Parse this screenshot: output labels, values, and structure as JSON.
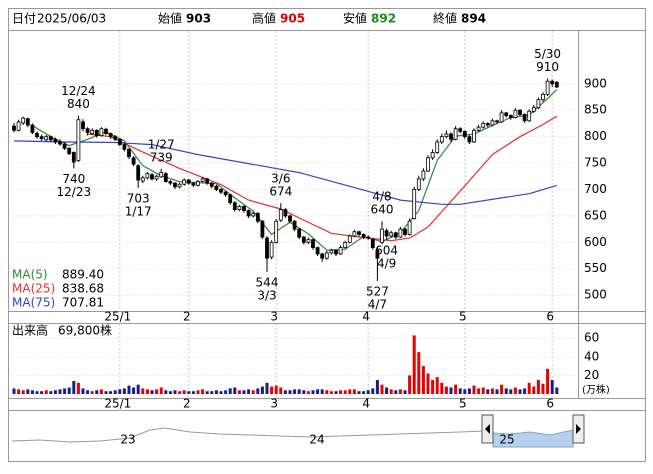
{
  "header": {
    "date_label": "日付",
    "date": "2025/06/03",
    "open_label": "始値",
    "high_label": "高値",
    "low_label": "安値",
    "close_label": "終値"
  },
  "chart_data": {
    "type": "candlestick",
    "candles": [
      [
        820,
        826,
        808,
        812
      ],
      [
        812,
        832,
        810,
        828
      ],
      [
        826,
        838,
        822,
        835
      ],
      [
        834,
        836,
        818,
        822
      ],
      [
        822,
        825,
        805,
        808
      ],
      [
        806,
        810,
        796,
        800
      ],
      [
        800,
        804,
        792,
        796
      ],
      [
        794,
        803,
        791,
        800
      ],
      [
        800,
        802,
        790,
        794
      ],
      [
        795,
        798,
        786,
        790
      ],
      [
        790,
        795,
        783,
        786
      ],
      [
        786,
        789,
        775,
        778
      ],
      [
        778,
        780,
        765,
        768
      ],
      [
        770,
        772,
        740,
        752
      ],
      [
        755,
        840,
        752,
        832
      ],
      [
        828,
        833,
        810,
        815
      ],
      [
        815,
        818,
        802,
        808
      ],
      [
        806,
        816,
        804,
        812
      ],
      [
        812,
        814,
        798,
        802
      ],
      [
        802,
        818,
        800,
        815
      ],
      [
        814,
        817,
        803,
        806
      ],
      [
        806,
        808,
        796,
        800
      ],
      [
        800,
        803,
        792,
        795
      ],
      [
        795,
        797,
        782,
        785
      ],
      [
        785,
        788,
        772,
        776
      ],
      [
        776,
        778,
        758,
        762
      ],
      [
        760,
        763,
        744,
        748
      ],
      [
        745,
        748,
        703,
        718
      ],
      [
        716,
        726,
        712,
        722
      ],
      [
        722,
        733,
        719,
        730
      ],
      [
        728,
        731,
        717,
        720
      ],
      [
        720,
        728,
        716,
        725
      ],
      [
        724,
        739,
        722,
        732
      ],
      [
        730,
        733,
        713,
        715
      ],
      [
        715,
        718,
        708,
        712
      ],
      [
        712,
        714,
        701,
        705
      ],
      [
        705,
        713,
        702,
        710
      ],
      [
        710,
        721,
        707,
        718
      ],
      [
        718,
        720,
        709,
        712
      ],
      [
        712,
        714,
        705,
        708
      ],
      [
        708,
        718,
        706,
        715
      ],
      [
        715,
        724,
        713,
        720
      ],
      [
        720,
        722,
        709,
        712
      ],
      [
        712,
        714,
        702,
        706
      ],
      [
        706,
        709,
        697,
        700
      ],
      [
        700,
        702,
        691,
        695
      ],
      [
        695,
        697,
        686,
        690
      ],
      [
        690,
        692,
        671,
        675
      ],
      [
        675,
        678,
        658,
        662
      ],
      [
        662,
        671,
        659,
        668
      ],
      [
        668,
        670,
        656,
        660
      ],
      [
        660,
        662,
        646,
        650
      ],
      [
        650,
        658,
        647,
        655
      ],
      [
        655,
        657,
        636,
        640
      ],
      [
        640,
        642,
        606,
        610
      ],
      [
        608,
        612,
        544,
        570
      ],
      [
        572,
        604,
        568,
        600
      ],
      [
        600,
        644,
        598,
        640
      ],
      [
        642,
        674,
        638,
        662
      ],
      [
        662,
        665,
        646,
        650
      ],
      [
        650,
        652,
        636,
        640
      ],
      [
        640,
        642,
        621,
        625
      ],
      [
        625,
        627,
        606,
        610
      ],
      [
        610,
        612,
        596,
        600
      ],
      [
        600,
        609,
        597,
        605
      ],
      [
        605,
        607,
        586,
        590
      ],
      [
        590,
        592,
        574,
        578
      ],
      [
        578,
        580,
        563,
        570
      ],
      [
        570,
        584,
        567,
        580
      ],
      [
        580,
        588,
        577,
        585
      ],
      [
        585,
        587,
        574,
        578
      ],
      [
        578,
        594,
        576,
        590
      ],
      [
        590,
        603,
        588,
        600
      ],
      [
        600,
        615,
        598,
        612
      ],
      [
        612,
        624,
        610,
        620
      ],
      [
        620,
        622,
        611,
        615
      ],
      [
        615,
        617,
        606,
        610
      ],
      [
        610,
        613,
        605,
        608
      ],
      [
        606,
        608,
        586,
        590
      ],
      [
        585,
        592,
        527,
        570
      ],
      [
        600,
        640,
        596,
        625
      ],
      [
        622,
        626,
        604,
        612
      ],
      [
        612,
        622,
        609,
        618
      ],
      [
        618,
        620,
        606,
        610
      ],
      [
        610,
        629,
        608,
        625
      ],
      [
        625,
        627,
        611,
        615
      ],
      [
        615,
        645,
        613,
        640
      ],
      [
        645,
        705,
        643,
        700
      ],
      [
        700,
        726,
        697,
        720
      ],
      [
        720,
        740,
        716,
        735
      ],
      [
        735,
        765,
        733,
        760
      ],
      [
        760,
        776,
        756,
        770
      ],
      [
        770,
        795,
        767,
        790
      ],
      [
        790,
        806,
        786,
        800
      ],
      [
        800,
        812,
        797,
        805
      ],
      [
        805,
        808,
        790,
        795
      ],
      [
        795,
        820,
        793,
        815
      ],
      [
        815,
        818,
        806,
        810
      ],
      [
        810,
        812,
        796,
        800
      ],
      [
        800,
        803,
        786,
        790
      ],
      [
        790,
        816,
        788,
        812
      ],
      [
        812,
        822,
        809,
        818
      ],
      [
        818,
        829,
        815,
        825
      ],
      [
        825,
        827,
        818,
        822
      ],
      [
        822,
        834,
        820,
        830
      ],
      [
        830,
        832,
        824,
        828
      ],
      [
        828,
        850,
        826,
        845
      ],
      [
        845,
        847,
        836,
        840
      ],
      [
        840,
        842,
        832,
        836
      ],
      [
        836,
        854,
        834,
        850
      ],
      [
        850,
        852,
        839,
        842
      ],
      [
        842,
        844,
        826,
        830
      ],
      [
        830,
        852,
        828,
        848
      ],
      [
        848,
        860,
        845,
        855
      ],
      [
        855,
        874,
        852,
        870
      ],
      [
        870,
        884,
        866,
        880
      ],
      [
        880,
        910,
        877,
        905
      ],
      [
        905,
        908,
        894,
        900
      ],
      [
        903,
        905,
        892,
        894
      ]
    ],
    "up_color": "#ffffff",
    "down_color": "#000000",
    "ylim": [
      470,
      1000
    ],
    "yticks": [
      500,
      550,
      600,
      650,
      700,
      750,
      800,
      850,
      900
    ],
    "xticks": [
      {
        "value": 23,
        "label": "25/1"
      },
      {
        "value": 38,
        "label": "2"
      },
      {
        "value": 57,
        "label": "3"
      },
      {
        "value": 77,
        "label": "4"
      },
      {
        "value": 98,
        "label": "5"
      },
      {
        "value": 117,
        "label": "6"
      }
    ],
    "annotations": [
      {
        "kind": "high",
        "date": "12/24",
        "value": 840
      },
      {
        "kind": "low",
        "date": "12/23",
        "value": 740
      },
      {
        "kind": "low",
        "date": "1/17",
        "value": 703
      },
      {
        "kind": "high",
        "date": "1/27",
        "value": 739
      },
      {
        "kind": "high",
        "date": "3/6",
        "value": 674
      },
      {
        "kind": "low",
        "date": "3/3",
        "value": 544
      },
      {
        "kind": "high",
        "date": "4/8",
        "value": 640
      },
      {
        "kind": "low",
        "date": "4/9",
        "value": 604
      },
      {
        "kind": "low",
        "date": "4/7",
        "value": 527
      },
      {
        "kind": "high",
        "date": "5/30",
        "value": 910
      }
    ],
    "series": [
      {
        "name": "MA(5)",
        "color": "#2e8b2e",
        "last_label": "889.40",
        "x": [
          4,
          8,
          12,
          16,
          20,
          24,
          28,
          32,
          36,
          40,
          44,
          48,
          52,
          56,
          60,
          64,
          68,
          72,
          76,
          80,
          84,
          88,
          92,
          96,
          100,
          104,
          108,
          112,
          116,
          118
        ],
        "values": [
          821,
          800,
          783,
          795,
          809,
          792,
          745,
          726,
          715,
          713,
          711,
          684,
          659,
          615,
          638,
          616,
          585,
          587,
          611,
          601,
          618,
          660,
          755,
          801,
          805,
          821,
          836,
          841,
          872,
          889.4
        ]
      },
      {
        "name": "MA(25)",
        "color": "#e03030",
        "last_label": "838.68",
        "x": [
          16,
          21,
          27,
          36,
          45,
          51,
          58,
          62,
          69,
          75,
          82,
          86,
          90,
          97,
          104,
          110,
          115,
          118
        ],
        "values": [
          805,
          800,
          775,
          740,
          709,
          680,
          663,
          646,
          617,
          610,
          603,
          608,
          629,
          697,
          766,
          800,
          823,
          838.68
        ]
      },
      {
        "name": "MA(75)",
        "color": "#3344cc",
        "last_label": "707.81",
        "x": [
          0,
          10,
          22,
          30,
          40,
          51,
          62,
          73,
          84,
          93,
          97,
          106,
          112,
          118
        ],
        "values": [
          792,
          790,
          789,
          785,
          766,
          749,
          732,
          706,
          680,
          672,
          672,
          684,
          692,
          707.81
        ]
      }
    ],
    "volume_title": "出来高",
    "volume_readout": "69,800株",
    "volume_unit": "(万株)",
    "volume_up_color": "#e60000",
    "volume_down_color": "#1c1c8c",
    "volumes": [
      6,
      5,
      4,
      5,
      4,
      3,
      3,
      4,
      3,
      4,
      5,
      6,
      7,
      14,
      12,
      6,
      4,
      3,
      4,
      5,
      3,
      3,
      4,
      5,
      6,
      9,
      7,
      10,
      6,
      5,
      4,
      5,
      7,
      4,
      3,
      4,
      3,
      4,
      3,
      3,
      4,
      5,
      3,
      3,
      4,
      3,
      4,
      6,
      7,
      4,
      4,
      5,
      4,
      6,
      8,
      12,
      8,
      9,
      7,
      4,
      4,
      5,
      5,
      4,
      3,
      4,
      5,
      5,
      4,
      3,
      3,
      4,
      4,
      5,
      5,
      3,
      3,
      4,
      6,
      15,
      10,
      7,
      5,
      4,
      5,
      4,
      20,
      63,
      45,
      30,
      22,
      15,
      18,
      12,
      8,
      7,
      10,
      6,
      5,
      6,
      9,
      6,
      7,
      5,
      6,
      5,
      10,
      6,
      5,
      7,
      5,
      6,
      12,
      8,
      15,
      11,
      27,
      15,
      6.98
    ],
    "vlim": [
      0,
      72
    ],
    "vticks": [
      20,
      40,
      60
    ],
    "navigator_labels": [
      "23",
      "24",
      "25"
    ]
  }
}
